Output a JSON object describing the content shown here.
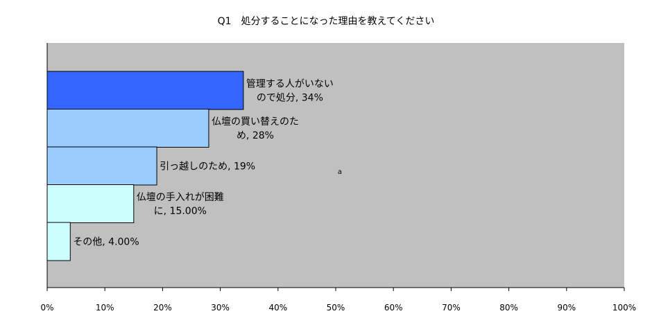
{
  "chart_data": {
    "type": "bar",
    "orientation": "horizontal",
    "title": "Q1　処分することになった理由を教えてください",
    "categories": [
      "管理する人がいないので処分",
      "仏壇の買い替えのため",
      "引っ越しのため",
      "仏壇の手入れが困難に",
      "その他"
    ],
    "values": [
      34,
      28,
      19,
      15,
      4
    ],
    "data_labels": [
      [
        "管理する人がいない",
        "ので処分, 34%"
      ],
      [
        "仏壇の買い替えのた",
        "め, 28%"
      ],
      [
        "引っ越しのため, 19%"
      ],
      [
        "仏壇の手入れが困難",
        "に, 15.00%"
      ],
      [
        "その他, 4.00%"
      ]
    ],
    "bar_colors": [
      "#3366ff",
      "#99ccff",
      "#99ccff",
      "#ccffff",
      "#ccffff"
    ],
    "plot_background": "#c0c0c0",
    "xlim": [
      0,
      100
    ],
    "x_ticks": [
      0,
      10,
      20,
      30,
      40,
      50,
      60,
      70,
      80,
      90,
      100
    ],
    "x_tick_labels": [
      "0%",
      "10%",
      "20%",
      "30%",
      "40%",
      "50%",
      "60%",
      "70%",
      "80%",
      "90%",
      "100%"
    ],
    "grid": false,
    "legend": "none",
    "annotation": "a"
  }
}
